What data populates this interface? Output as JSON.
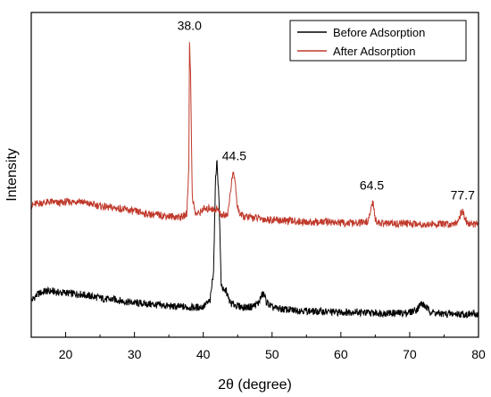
{
  "chart_data": {
    "type": "line",
    "xlabel": "2θ (degree)",
    "ylabel": "Intensity",
    "xlim": [
      15,
      80
    ],
    "x_ticks": [
      20,
      30,
      40,
      50,
      60,
      70,
      80
    ],
    "y_ticks_shown": false,
    "grid": false,
    "legend_position": "top-right",
    "series": [
      {
        "name": "Before Adsorption",
        "color": "#000000",
        "points": [
          [
            15,
            1.2
          ],
          [
            16,
            1.7
          ],
          [
            17,
            1.9
          ],
          [
            18,
            1.9
          ],
          [
            19,
            1.8
          ],
          [
            20,
            1.8
          ],
          [
            21,
            1.7
          ],
          [
            22,
            1.7
          ],
          [
            23,
            1.6
          ],
          [
            24,
            1.5
          ],
          [
            25,
            1.4
          ],
          [
            26,
            1.3
          ],
          [
            27,
            1.3
          ],
          [
            28,
            1.2
          ],
          [
            29,
            1.1
          ],
          [
            30,
            1.05
          ],
          [
            31,
            1.0
          ],
          [
            32,
            0.95
          ],
          [
            33,
            0.9
          ],
          [
            34,
            0.85
          ],
          [
            35,
            0.8
          ],
          [
            36,
            0.75
          ],
          [
            37,
            0.75
          ],
          [
            38,
            0.7
          ],
          [
            39,
            0.7
          ],
          [
            40,
            0.75
          ],
          [
            41,
            1.2
          ],
          [
            41.5,
            3.5
          ],
          [
            41.8,
            10.5
          ],
          [
            42.0,
            11.5
          ],
          [
            42.3,
            8.5
          ],
          [
            42.6,
            2.5
          ],
          [
            43.0,
            1.8
          ],
          [
            43.3,
            2.0
          ],
          [
            43.7,
            1.3
          ],
          [
            44,
            1.0
          ],
          [
            45,
            0.8
          ],
          [
            46,
            0.7
          ],
          [
            47,
            0.75
          ],
          [
            48,
            1.0
          ],
          [
            48.5,
            1.6
          ],
          [
            48.8,
            1.7
          ],
          [
            49.2,
            1.1
          ],
          [
            50,
            0.7
          ],
          [
            51,
            0.6
          ],
          [
            52,
            0.55
          ],
          [
            53,
            0.5
          ],
          [
            54,
            0.5
          ],
          [
            55,
            0.45
          ],
          [
            56,
            0.4
          ],
          [
            57,
            0.4
          ],
          [
            58,
            0.38
          ],
          [
            59,
            0.35
          ],
          [
            60,
            0.35
          ],
          [
            61,
            0.35
          ],
          [
            62,
            0.4
          ],
          [
            63,
            0.32
          ],
          [
            64,
            0.3
          ],
          [
            65,
            0.3
          ],
          [
            66,
            0.28
          ],
          [
            67,
            0.28
          ],
          [
            68,
            0.28
          ],
          [
            69,
            0.28
          ],
          [
            70,
            0.35
          ],
          [
            71,
            0.55
          ],
          [
            71.7,
            1.0
          ],
          [
            72.2,
            0.8
          ],
          [
            73,
            0.4
          ],
          [
            74,
            0.25
          ],
          [
            75,
            0.22
          ],
          [
            76,
            0.22
          ],
          [
            77,
            0.22
          ],
          [
            78,
            0.2
          ],
          [
            79,
            0.2
          ],
          [
            80,
            0.2
          ]
        ]
      },
      {
        "name": "After Adsorption",
        "color": "#c0392b",
        "points": [
          [
            15,
            8.2
          ],
          [
            16,
            8.4
          ],
          [
            17,
            8.45
          ],
          [
            18,
            8.5
          ],
          [
            19,
            8.4
          ],
          [
            20,
            8.5
          ],
          [
            21,
            8.5
          ],
          [
            22,
            8.6
          ],
          [
            23,
            8.4
          ],
          [
            24,
            8.3
          ],
          [
            25,
            8.2
          ],
          [
            26,
            8.1
          ],
          [
            27,
            8.05
          ],
          [
            28,
            8.0
          ],
          [
            29,
            7.9
          ],
          [
            30,
            7.8
          ],
          [
            31,
            7.7
          ],
          [
            32,
            7.6
          ],
          [
            33,
            7.55
          ],
          [
            34,
            7.5
          ],
          [
            35,
            7.45
          ],
          [
            36,
            7.4
          ],
          [
            37,
            7.4
          ],
          [
            37.6,
            7.6
          ],
          [
            37.9,
            11
          ],
          [
            38.0,
            20.5
          ],
          [
            38.15,
            18
          ],
          [
            38.4,
            9
          ],
          [
            38.8,
            7.7
          ],
          [
            39,
            7.6
          ],
          [
            39.5,
            7.7
          ],
          [
            40,
            8.0
          ],
          [
            40.5,
            7.9
          ],
          [
            41,
            8.1
          ],
          [
            41.5,
            7.9
          ],
          [
            42,
            8.0
          ],
          [
            42.5,
            7.6
          ],
          [
            43,
            7.5
          ],
          [
            43.6,
            7.7
          ],
          [
            44.0,
            9.5
          ],
          [
            44.3,
            10.6
          ],
          [
            44.6,
            10.2
          ],
          [
            44.9,
            8.3
          ],
          [
            45.4,
            7.5
          ],
          [
            46,
            7.4
          ],
          [
            47,
            7.35
          ],
          [
            48,
            7.3
          ],
          [
            49,
            7.2
          ],
          [
            50,
            7.2
          ],
          [
            51,
            7.15
          ],
          [
            52,
            7.1
          ],
          [
            53,
            7.1
          ],
          [
            54,
            7.05
          ],
          [
            55,
            7.0
          ],
          [
            56,
            7.0
          ],
          [
            57,
            7.0
          ],
          [
            58,
            7.05
          ],
          [
            59,
            7.0
          ],
          [
            60,
            6.95
          ],
          [
            61,
            6.95
          ],
          [
            62,
            6.9
          ],
          [
            63,
            6.95
          ],
          [
            64,
            7.1
          ],
          [
            64.3,
            7.7
          ],
          [
            64.5,
            8.5
          ],
          [
            64.7,
            8.3
          ],
          [
            65,
            7.2
          ],
          [
            65.5,
            6.95
          ],
          [
            66,
            6.9
          ],
          [
            67,
            6.9
          ],
          [
            68,
            6.9
          ],
          [
            69,
            6.9
          ],
          [
            70,
            6.9
          ],
          [
            71,
            6.9
          ],
          [
            72,
            6.85
          ],
          [
            73,
            6.85
          ],
          [
            74,
            6.85
          ],
          [
            75,
            6.85
          ],
          [
            76,
            6.85
          ],
          [
            77,
            7.1
          ],
          [
            77.4,
            7.6
          ],
          [
            77.7,
            7.9
          ],
          [
            78,
            7.3
          ],
          [
            78.5,
            6.9
          ],
          [
            79,
            6.85
          ],
          [
            80,
            6.85
          ]
        ]
      }
    ],
    "annotations": [
      {
        "text": "38.0",
        "x": 38.0,
        "y": 21.2
      },
      {
        "text": "44.5",
        "x": 44.5,
        "y": 11.6
      },
      {
        "text": "64.5",
        "x": 64.5,
        "y": 9.4
      },
      {
        "text": "77.7",
        "x": 77.7,
        "y": 8.7
      }
    ],
    "y_range": [
      -1.5,
      22.5
    ]
  }
}
